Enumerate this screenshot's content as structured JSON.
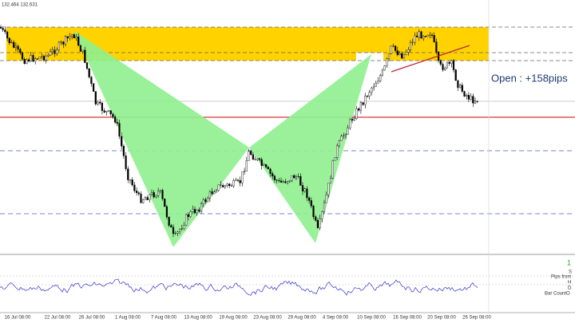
{
  "header": {
    "quote": "132.464 132.631"
  },
  "annotation": "Open : +158pips",
  "time_axis": [
    "16 Jul 08:00",
    "22 Jul 08:00",
    "26 Jul 08:00",
    "1 Aug 08:00",
    "7 Aug 08:00",
    "13 Aug 08:00",
    "19 Aug 08:00",
    "23 Aug 08:00",
    "29 Aug 08:00",
    "4 Sep 08:00",
    "10 Sep 08:00",
    "16 Sep 08:00",
    "20 Sep 08:00",
    "26 Sep 08:00"
  ],
  "side_panel": {
    "count": "1",
    "s": "S",
    "pips": "Pips from",
    "h": "H",
    "d": "D",
    "bars": "Bar CountO"
  }
}
